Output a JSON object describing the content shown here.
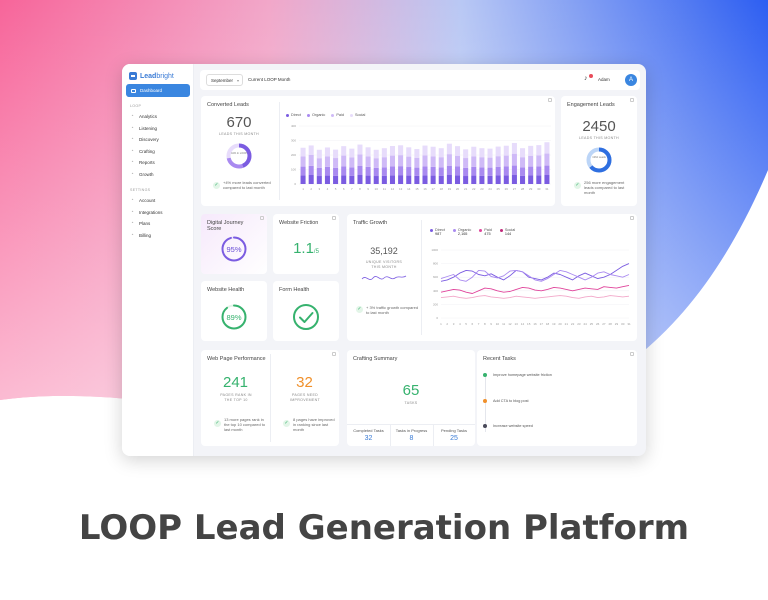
{
  "brand": {
    "name_a": "Lead",
    "name_b": "bright"
  },
  "sidebar": {
    "active": "Dashboard",
    "section1": "LOOP",
    "items1": [
      {
        "label": "Analytics",
        "icon": "analytics-icon"
      },
      {
        "label": "Listening",
        "icon": "listening-icon"
      },
      {
        "label": "Discovery",
        "icon": "discovery-icon"
      },
      {
        "label": "Crafting",
        "icon": "crafting-icon"
      },
      {
        "label": "Reports",
        "icon": "reports-icon"
      },
      {
        "label": "Growth",
        "icon": "growth-icon"
      }
    ],
    "section2": "SETTINGS",
    "items2": [
      {
        "label": "Account",
        "icon": "account-icon"
      },
      {
        "label": "Integrations",
        "icon": "integrations-icon"
      },
      {
        "label": "Plans",
        "icon": "plans-icon"
      },
      {
        "label": "Billing",
        "icon": "billing-icon"
      }
    ]
  },
  "topbar": {
    "month": "September",
    "title": "Current LOOP Month",
    "user": "Adam",
    "avatar": "A"
  },
  "converted": {
    "title": "Converted Leads",
    "value": "670",
    "label": "LEADS THIS MONTH",
    "donut_label": "44% In LOOP",
    "note": "+4% more leads converted compared to last month",
    "legend": [
      "Direct",
      "Organic",
      "Paid",
      "Social"
    ]
  },
  "engagement": {
    "title": "Engagement Leads",
    "value": "2450",
    "label": "LEADS THIS MONTH",
    "donut_label": "1364 Leads",
    "note": "256 more engagement leads compared to last month"
  },
  "digital": {
    "title": "Digital Journey Score",
    "value": "95%",
    "progress": 0.95
  },
  "friction": {
    "title": "Website Friction",
    "value": "1.1",
    "suffix": "/5"
  },
  "health": {
    "title": "Website Health",
    "value": "89%",
    "progress": 0.89
  },
  "form": {
    "title": "Form Health"
  },
  "traffic": {
    "title": "Traffic Growth",
    "value": "35,192",
    "label": "UNIQUE VISITORS THIS MONTH",
    "note": "+ 3% traffic growth compared to last month",
    "legend": [
      {
        "name": "Direct",
        "value": "987"
      },
      {
        "name": "Organic",
        "value": "2,165"
      },
      {
        "name": "Paid",
        "value": "475"
      },
      {
        "name": "Social",
        "value": "144"
      }
    ]
  },
  "webperf": {
    "title": "Web Page Performance",
    "a_value": "241",
    "a_label": "PAGES RANK IN THE TOP 10",
    "a_note": "13 more pages rank in the top 10 compared to last month",
    "b_value": "32",
    "b_label": "PAGES NEED IMPROVEMENT",
    "b_note": "8 pages have improved in ranking since last month"
  },
  "crafting": {
    "title": "Crafting Summary",
    "value": "65",
    "label": "TASKS",
    "stats": [
      {
        "label": "Completed Tasks",
        "value": "32"
      },
      {
        "label": "Tasks in Progress",
        "value": "8"
      },
      {
        "label": "Pending Tasks",
        "value": "25"
      }
    ]
  },
  "recent": {
    "title": "Recent Tasks",
    "items": [
      "Improve homepage website friction",
      "Add CTA to blog post",
      "Increase website speed"
    ]
  },
  "page_title": "LOOP Lead Generation Platform",
  "colors": {
    "accent": "#3a86e0",
    "purple_dark": "#7b5ce1",
    "purple_mid": "#a98af0",
    "purple_light": "#cfbaf7",
    "purple_pale": "#e7dcfb",
    "green": "#36b26e",
    "orange": "#f0902b",
    "pink": "#e0449b"
  },
  "chart_data": [
    {
      "type": "bar",
      "stacked": true,
      "categories": [
        "1",
        "2",
        "3",
        "4",
        "5",
        "6",
        "7",
        "8",
        "9",
        "10",
        "11",
        "12",
        "13",
        "14",
        "15",
        "16",
        "17",
        "18",
        "19",
        "20",
        "21",
        "22",
        "23",
        "24",
        "25",
        "26",
        "27",
        "28",
        "29",
        "30",
        "31"
      ],
      "series": [
        {
          "name": "Direct",
          "values": [
            60,
            62,
            55,
            58,
            56,
            60,
            57,
            62,
            58,
            55,
            57,
            60,
            61,
            58,
            56,
            60,
            58,
            57,
            62,
            60,
            55,
            58,
            57,
            56,
            59,
            60,
            62,
            57,
            59,
            60,
            62
          ]
        },
        {
          "name": "Organic",
          "values": [
            60,
            63,
            57,
            60,
            55,
            62,
            58,
            64,
            60,
            56,
            58,
            62,
            62,
            59,
            57,
            62,
            60,
            58,
            64,
            61,
            56,
            60,
            58,
            57,
            60,
            61,
            65,
            58,
            61,
            62,
            65
          ]
        },
        {
          "name": "Paid",
          "values": [
            70,
            75,
            66,
            72,
            68,
            74,
            69,
            78,
            72,
            67,
            70,
            74,
            76,
            72,
            68,
            75,
            73,
            70,
            80,
            74,
            68,
            73,
            70,
            69,
            73,
            75,
            82,
            70,
            75,
            76,
            83
          ]
        },
        {
          "name": "Social",
          "values": [
            60,
            66,
            58,
            62,
            58,
            65,
            60,
            68,
            63,
            58,
            62,
            66,
            68,
            64,
            60,
            68,
            66,
            62,
            72,
            66,
            60,
            66,
            62,
            62,
            66,
            68,
            74,
            62,
            68,
            70,
            78
          ]
        }
      ],
      "ylim": [
        0,
        400
      ],
      "yticks": [
        0,
        100,
        200,
        300,
        400
      ]
    },
    {
      "type": "line",
      "x": [
        "1",
        "2",
        "3",
        "4",
        "5",
        "6",
        "7",
        "8",
        "9",
        "10",
        "11",
        "12",
        "13",
        "14",
        "15",
        "16",
        "17",
        "18",
        "19",
        "20",
        "21",
        "22",
        "23",
        "24",
        "25",
        "26",
        "27",
        "28",
        "29",
        "30",
        "31"
      ],
      "series": [
        {
          "name": "Direct",
          "values": [
            540,
            560,
            600,
            660,
            700,
            690,
            640,
            620,
            650,
            600,
            560,
            620,
            700,
            680,
            600,
            580,
            560,
            600,
            660,
            640,
            600,
            560,
            620,
            660,
            620,
            580,
            600,
            640,
            700,
            760,
            800
          ]
        },
        {
          "name": "Organic",
          "values": [
            580,
            610,
            640,
            560,
            540,
            600,
            700,
            690,
            610,
            590,
            620,
            690,
            700,
            680,
            620,
            560,
            540,
            580,
            640,
            700,
            680,
            640,
            600,
            560,
            600,
            660,
            680,
            640,
            620,
            600,
            640
          ]
        },
        {
          "name": "Paid",
          "values": [
            380,
            400,
            420,
            410,
            380,
            360,
            400,
            440,
            430,
            400,
            380,
            390,
            420,
            450,
            440,
            410,
            400,
            420,
            450,
            440,
            420,
            400,
            420,
            440,
            430,
            420,
            460,
            450,
            440,
            460,
            480
          ]
        },
        {
          "name": "Social",
          "values": [
            300,
            310,
            320,
            300,
            290,
            300,
            320,
            330,
            310,
            300,
            290,
            300,
            320,
            310,
            300,
            290,
            300,
            310,
            320,
            330,
            320,
            300,
            290,
            310,
            320,
            300,
            310,
            330,
            320,
            310,
            320
          ]
        }
      ],
      "ylim": [
        0,
        1000
      ],
      "yticks": [
        0,
        200,
        400,
        600,
        800,
        1000
      ]
    }
  ]
}
